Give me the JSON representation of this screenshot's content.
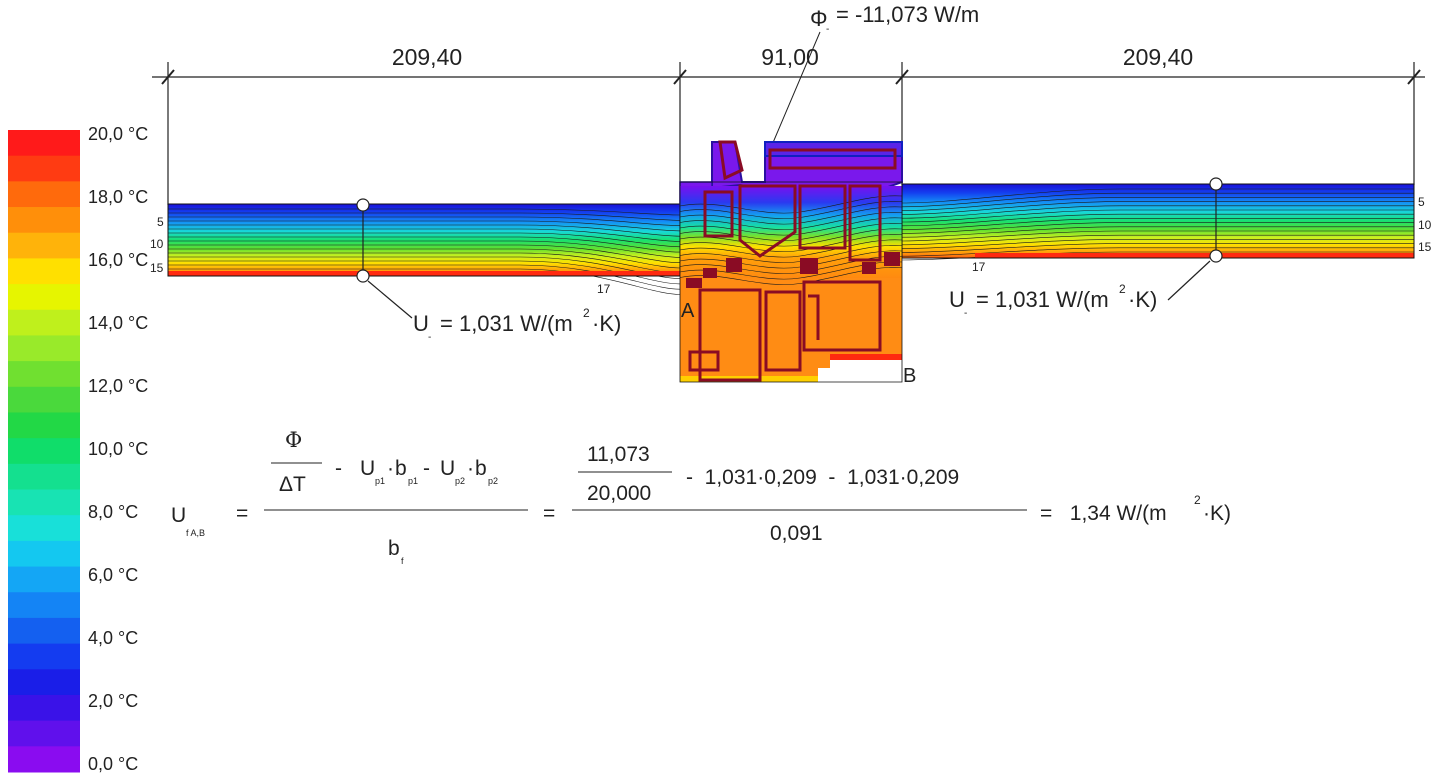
{
  "diagram": {
    "heat_flow": {
      "symbol": "Φ",
      "sub": "-",
      "rest": "= -11,073 W/m"
    },
    "dimensions": [
      "209,40",
      "91,00",
      "209,40"
    ],
    "u_left": {
      "sym": "U",
      "sub": "-",
      "rest": "= 1,031 W/(m",
      "sup": "2",
      "tail": "·K)"
    },
    "u_right": {
      "sym": "U",
      "sub": "-",
      "rest": "= 1,031 W/(m",
      "sup": "2",
      "tail": "·K)"
    },
    "point_a": "A",
    "point_b": "B",
    "iso_left": [
      "5",
      "10",
      "15"
    ],
    "iso_right": [
      "5",
      "10",
      "15"
    ],
    "iso_17_left": "17",
    "iso_17_right": "17"
  },
  "legend": {
    "unit": "°C",
    "labels": [
      "20,0 °C",
      "18,0 °C",
      "16,0 °C",
      "14,0 °C",
      "12,0 °C",
      "10,0 °C",
      "8,0 °C",
      "6,0 °C",
      "4,0 °C",
      "2,0 °C",
      "0,0 °C"
    ],
    "colors": [
      "#ff1a1a",
      "#ff3b12",
      "#ff6a0c",
      "#ff8f0a",
      "#ffb30a",
      "#ffe000",
      "#e6f500",
      "#bff01c",
      "#99ea2a",
      "#70e030",
      "#4ad93c",
      "#22d846",
      "#10dd6a",
      "#14e08f",
      "#18e3b3",
      "#18e0d9",
      "#14c8f0",
      "#14a6f5",
      "#1484f5",
      "#1460f0",
      "#143cf0",
      "#1a1ee8",
      "#3a12e8",
      "#6010ec",
      "#8a0cf0"
    ]
  },
  "formula": {
    "lhs": "U",
    "lhs_sub": "f A,B",
    "eq": "=",
    "phi": "Φ",
    "delta_t": "ΔT",
    "minus": "-",
    "u": "U",
    "b": "b",
    "sub_p1": "p1",
    "sub_p2": "p2",
    "dot": "·",
    "bf": "b",
    "bf_sub": "f",
    "num_top": "11,073",
    "num_bottom": "20,000",
    "term1": "-  1,031·0,209  -  1,031·0,209",
    "denominator": "0,091",
    "result": "=   1,34 W/(m",
    "result_sup": "2",
    "result_tail": "·K)"
  }
}
